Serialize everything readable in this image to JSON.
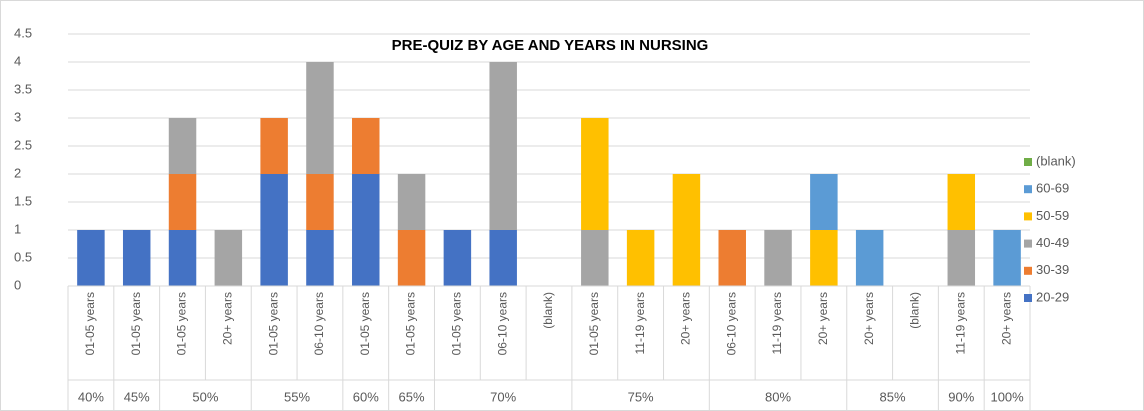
{
  "chart_data": {
    "type": "bar",
    "stacked": true,
    "title": "PRE-QUIZ BY AGE AND YEARS IN NURSING",
    "groups": [
      {
        "label": "40%",
        "categories": [
          "01-05 years"
        ]
      },
      {
        "label": "45%",
        "categories": [
          "01-05 years"
        ]
      },
      {
        "label": "50%",
        "categories": [
          "01-05 years",
          "20+ years"
        ]
      },
      {
        "label": "55%",
        "categories": [
          "01-05 years",
          "06-10 years"
        ]
      },
      {
        "label": "60%",
        "categories": [
          "01-05 years"
        ]
      },
      {
        "label": "65%",
        "categories": [
          "01-05 years"
        ]
      },
      {
        "label": "70%",
        "categories": [
          "01-05 years",
          "06-10 years",
          "(blank)"
        ]
      },
      {
        "label": "75%",
        "categories": [
          "01-05 years",
          "11-19 years",
          "20+ years"
        ]
      },
      {
        "label": "80%",
        "categories": [
          "06-10 years",
          "11-19 years",
          "20+ years"
        ]
      },
      {
        "label": "85%",
        "categories": [
          "20+ years",
          "(blank)"
        ]
      },
      {
        "label": "90%",
        "categories": [
          "11-19 years"
        ]
      },
      {
        "label": "100%",
        "categories": [
          "20+ years"
        ]
      }
    ],
    "series": [
      {
        "name": "20-29",
        "color": "#4472c4",
        "values": [
          1,
          1,
          1,
          null,
          2,
          1,
          2,
          null,
          1,
          1,
          null,
          null,
          null,
          null,
          null,
          null,
          null,
          null,
          null,
          null,
          null
        ]
      },
      {
        "name": "30-39",
        "color": "#ed7d31",
        "values": [
          null,
          null,
          1,
          null,
          1,
          1,
          1,
          1,
          null,
          null,
          null,
          null,
          null,
          null,
          1,
          null,
          null,
          null,
          null,
          null,
          null
        ]
      },
      {
        "name": "40-49",
        "color": "#a5a5a5",
        "values": [
          null,
          null,
          1,
          1,
          null,
          2,
          null,
          1,
          null,
          3,
          null,
          1,
          null,
          null,
          null,
          1,
          null,
          null,
          null,
          1,
          null
        ]
      },
      {
        "name": "50-59",
        "color": "#ffc000",
        "values": [
          null,
          null,
          null,
          null,
          null,
          null,
          null,
          null,
          null,
          null,
          null,
          2,
          1,
          2,
          null,
          null,
          1,
          null,
          null,
          1,
          null
        ]
      },
      {
        "name": "60-69",
        "color": "#5b9bd5",
        "values": [
          null,
          null,
          null,
          null,
          null,
          null,
          null,
          null,
          null,
          null,
          null,
          null,
          null,
          null,
          null,
          null,
          1,
          1,
          null,
          null,
          1
        ]
      },
      {
        "name": "(blank)",
        "color": "#70ad47",
        "values": [
          null,
          null,
          null,
          null,
          null,
          null,
          null,
          null,
          null,
          null,
          null,
          null,
          null,
          null,
          null,
          null,
          null,
          null,
          null,
          null,
          null
        ]
      }
    ],
    "ylim": [
      0,
      4.5
    ],
    "yticks": [
      0,
      0.5,
      1,
      1.5,
      2,
      2.5,
      3,
      3.5,
      4,
      4.5
    ],
    "grid": true,
    "legend": "right"
  }
}
